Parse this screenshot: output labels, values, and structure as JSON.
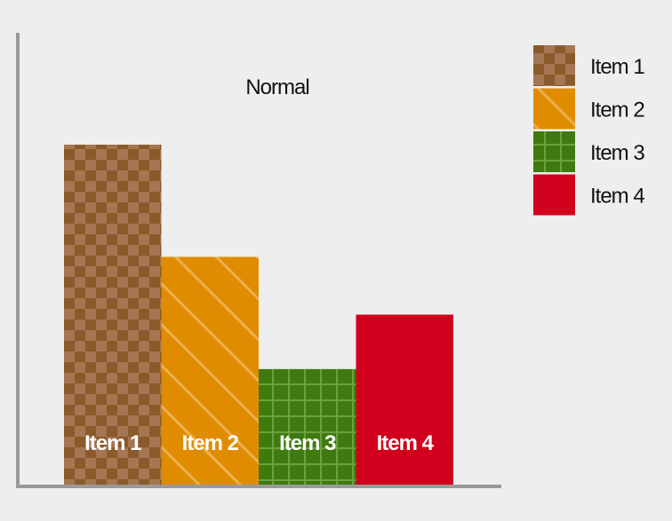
{
  "chart_data": {
    "type": "bar",
    "title": "Normal",
    "xlabel": "",
    "ylabel": "",
    "ylim": [
      0,
      100
    ],
    "categories": [
      "Item 1",
      "Item 2",
      "Item 3",
      "Item 4"
    ],
    "values": [
      100,
      67,
      34,
      50
    ],
    "colors": {
      "Item 1": "#8b5a2b",
      "Item 2": "#e08c00",
      "Item 3": "#3f7a10",
      "Item 4": "#d1001c"
    },
    "patterns": {
      "Item 1": "checkerboard",
      "Item 2": "diagonal-stripes",
      "Item 3": "grid",
      "Item 4": "solid"
    },
    "legend": {
      "position": "top-right",
      "entries": [
        "Item 1",
        "Item 2",
        "Item 3",
        "Item 4"
      ]
    },
    "data_labels": "inside-bottom",
    "grid": false,
    "axis_color": "#999999",
    "background": "#eeeeee"
  }
}
